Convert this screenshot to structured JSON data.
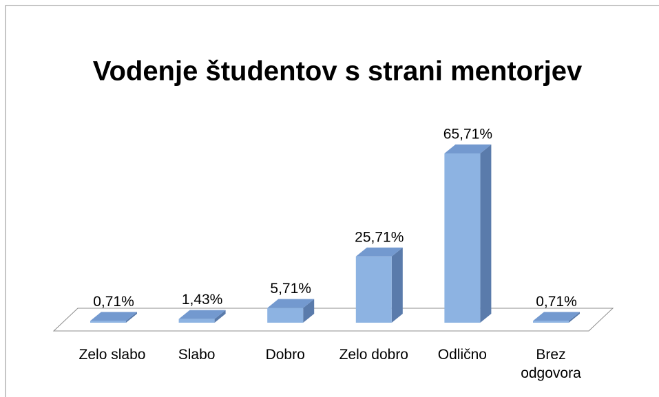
{
  "chart_data": {
    "type": "bar3d",
    "title": "Vodenje študentov s strani mentorjev",
    "categories": [
      "Zelo slabo",
      "Slabo",
      "Dobro",
      "Zelo dobro",
      "Odlično",
      "Brez odgovora"
    ],
    "values": [
      0.71,
      1.43,
      5.71,
      25.71,
      65.71,
      0.71
    ],
    "value_labels": [
      "0,71%",
      "1,43%",
      "5,71%",
      "25,71%",
      "65,71%",
      "0,71%"
    ],
    "color": "#8db3e2"
  }
}
